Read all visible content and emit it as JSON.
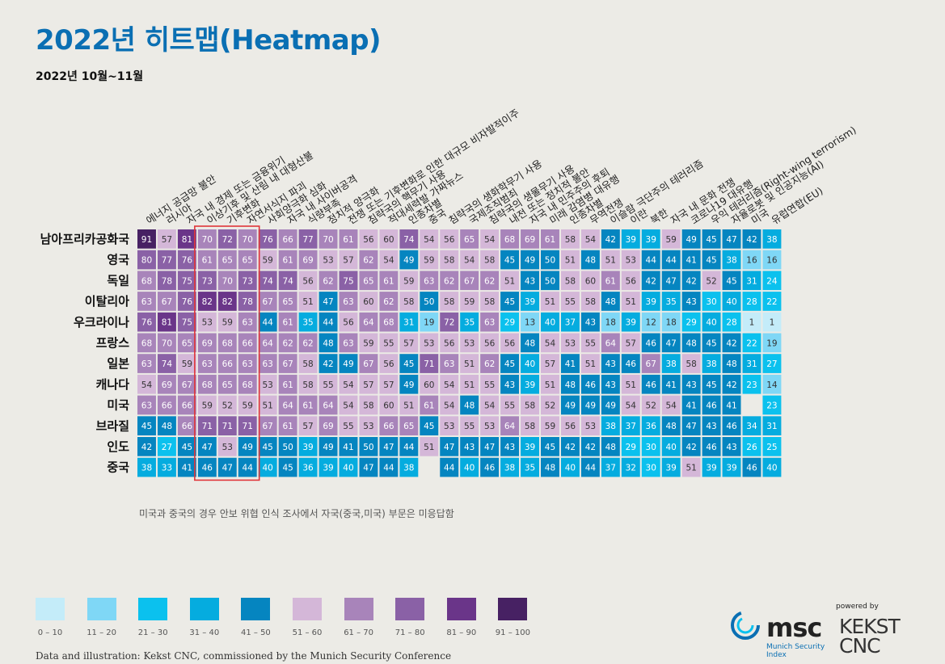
{
  "title": "2022년 히트맵(Heatmap)",
  "subtitle": "2022년 10월~11월",
  "note": "미국과 중국의 경우 안보 위협 인식 조사에서 자국(중국,미국) 부문은 미응답함",
  "footer": "Data and illustration: Kekst CNC, commissioned by the Munich Security Conference",
  "logos": {
    "msc_word": "msc",
    "msc_sub_1": "Munich Security",
    "msc_sub_2": "Index",
    "kekst_powered": "powered by",
    "kekst_name_1": "KEKST",
    "kekst_name_2": "CNC"
  },
  "colors": {
    "background": "#ecebe6",
    "title": "#0a6fb3",
    "highlight_box": "#e0363a",
    "scale": [
      "#c4ecf9",
      "#7fd7f6",
      "#0bc1ee",
      "#05acdf",
      "#0585c0",
      "#d4b7d8",
      "#a884ba",
      "#8a61a6",
      "#6a3589",
      "#472163"
    ]
  },
  "chart_data": {
    "type": "heatmap",
    "title": "2022년 히트맵(Heatmap)",
    "subtitle": "2022년 10월~11월",
    "columns": [
      "에너지 공급망 불안",
      "러시아",
      "자국 내 경제 또는 금융위기",
      "이상기후 및 산림 내 대형산불",
      "기후변화",
      "자연서식지 파괴",
      "사회양극화 심화",
      "자국 내 사이버공격",
      "식량부족",
      "정치적 양극화",
      "전쟁 또는 기후변화로 인한 대규모 비자발적이주",
      "침략국의 핵무기 사용",
      "적대세력발 가짜뉴스",
      "인종차별",
      "중국",
      "침략국의 생화학무기 사용",
      "국제조직범죄",
      "침략국의 생물무기 사용",
      "내전 또는 정치적 불안",
      "자국 내 민주주의 후퇴",
      "미래 감염병 대유행",
      "인종차별",
      "무역전쟁",
      "이슬람 극단주의 테러리즘",
      "이란",
      "북한",
      "자국 내 문화 전쟁",
      "코로나19 대유행",
      "우익 테러리즘(Right-wing terrorism)",
      "자율로봇 및 인공지능(AI)",
      "미국",
      "유럽연합(EU)"
    ],
    "rows": [
      "남아프리카공화국",
      "영국",
      "독일",
      "이탈리아",
      "우크라이나",
      "프랑스",
      "일본",
      "캐나다",
      "미국",
      "브라질",
      "인도",
      "중국"
    ],
    "values": [
      [
        91,
        57,
        81,
        70,
        72,
        70,
        76,
        66,
        77,
        70,
        61,
        56,
        60,
        74,
        54,
        56,
        65,
        54,
        68,
        69,
        61,
        58,
        54,
        42,
        39,
        39,
        59,
        49,
        45,
        47,
        42,
        38
      ],
      [
        80,
        77,
        76,
        61,
        65,
        65,
        59,
        61,
        69,
        53,
        57,
        62,
        54,
        49,
        59,
        58,
        54,
        58,
        45,
        49,
        50,
        51,
        48,
        51,
        53,
        44,
        44,
        41,
        45,
        38,
        16,
        16
      ],
      [
        68,
        78,
        75,
        73,
        70,
        73,
        74,
        74,
        56,
        62,
        75,
        65,
        61,
        59,
        63,
        62,
        67,
        62,
        51,
        43,
        50,
        58,
        60,
        61,
        56,
        42,
        47,
        42,
        52,
        45,
        31,
        24
      ],
      [
        63,
        67,
        76,
        82,
        82,
        78,
        67,
        65,
        51,
        47,
        63,
        60,
        62,
        58,
        50,
        58,
        59,
        58,
        45,
        39,
        51,
        55,
        58,
        48,
        51,
        39,
        35,
        43,
        30,
        40,
        28,
        22
      ],
      [
        76,
        81,
        75,
        53,
        59,
        63,
        44,
        61,
        35,
        44,
        56,
        64,
        68,
        31,
        19,
        72,
        35,
        63,
        29,
        13,
        40,
        37,
        43,
        18,
        39,
        12,
        18,
        29,
        40,
        28,
        1,
        1
      ],
      [
        68,
        70,
        65,
        69,
        68,
        66,
        64,
        62,
        62,
        48,
        63,
        59,
        55,
        57,
        53,
        56,
        53,
        56,
        56,
        48,
        54,
        53,
        55,
        64,
        57,
        46,
        47,
        48,
        45,
        42,
        22,
        19
      ],
      [
        63,
        74,
        59,
        63,
        66,
        63,
        63,
        67,
        58,
        42,
        49,
        67,
        56,
        45,
        71,
        63,
        51,
        62,
        45,
        40,
        57,
        41,
        51,
        43,
        46,
        67,
        38,
        58,
        38,
        48,
        31,
        27
      ],
      [
        54,
        69,
        67,
        68,
        65,
        68,
        53,
        61,
        58,
        55,
        54,
        57,
        57,
        49,
        60,
        54,
        51,
        55,
        43,
        39,
        51,
        48,
        46,
        43,
        51,
        46,
        41,
        43,
        45,
        42,
        23,
        14
      ],
      [
        63,
        66,
        66,
        59,
        52,
        59,
        51,
        64,
        61,
        64,
        54,
        58,
        60,
        51,
        61,
        54,
        48,
        54,
        55,
        58,
        52,
        49,
        49,
        49,
        54,
        52,
        54,
        41,
        46,
        41,
        null,
        23
      ],
      [
        45,
        48,
        66,
        71,
        71,
        71,
        67,
        61,
        57,
        69,
        55,
        53,
        66,
        65,
        45,
        53,
        55,
        53,
        64,
        58,
        59,
        56,
        53,
        38,
        37,
        36,
        48,
        47,
        43,
        46,
        34,
        31
      ],
      [
        42,
        27,
        45,
        47,
        53,
        49,
        45,
        50,
        39,
        49,
        41,
        50,
        47,
        44,
        51,
        47,
        43,
        47,
        43,
        39,
        45,
        42,
        42,
        48,
        29,
        30,
        40,
        42,
        46,
        43,
        26,
        25
      ],
      [
        38,
        33,
        41,
        46,
        47,
        44,
        40,
        45,
        36,
        39,
        40,
        47,
        44,
        38,
        null,
        44,
        40,
        46,
        38,
        35,
        48,
        40,
        44,
        37,
        32,
        30,
        39,
        51,
        39,
        39,
        46,
        40
      ]
    ],
    "highlighted_columns": [
      "이상기후 및 산림 내 대형산불",
      "기후변화",
      "자연서식지 파괴"
    ],
    "legend": {
      "placement": "bottom-left",
      "bins": [
        "0 – 10",
        "11 – 20",
        "21 – 30",
        "31 – 40",
        "41 – 50",
        "51 – 60",
        "61 – 70",
        "71 – 80",
        "81 – 90",
        "91 – 100"
      ]
    }
  }
}
